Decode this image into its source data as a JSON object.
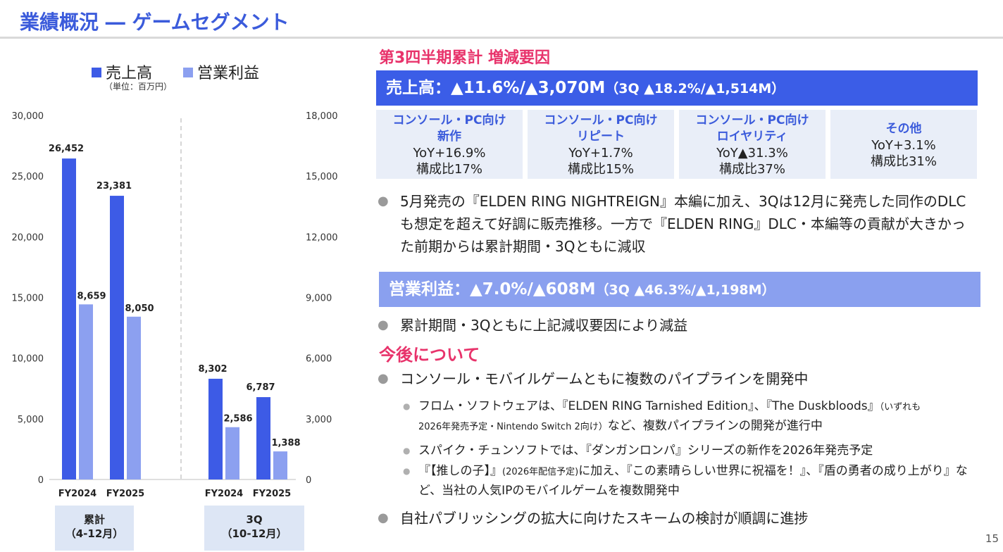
{
  "page_title": "業績概況 ― ゲームセグメント",
  "page_number": "15",
  "legend": {
    "sales": "売上高",
    "op": "営業利益",
    "unit_note": "（単位：百万円）"
  },
  "colors": {
    "sales": "#3d5be6",
    "op": "#8ca0f0",
    "accent": "#e8336b"
  },
  "chart_data": {
    "type": "bar",
    "left_axis": {
      "ylim": [
        0,
        30000
      ],
      "ticks": [
        "0",
        "5,000",
        "10,000",
        "15,000",
        "20,000",
        "25,000",
        "30,000"
      ]
    },
    "right_axis": {
      "ylim": [
        0,
        18000
      ],
      "ticks": [
        "0",
        "3,000",
        "6,000",
        "9,000",
        "12,000",
        "15,000",
        "18,000"
      ]
    },
    "categories": [
      "FY2024",
      "FY2025",
      "FY2024",
      "FY2025"
    ],
    "series": [
      {
        "name": "売上高",
        "axis": "left",
        "values": [
          26452,
          23381,
          8302,
          6787
        ],
        "labels": [
          "26,452",
          "23,381",
          "8,302",
          "6,787"
        ]
      },
      {
        "name": "営業利益",
        "axis": "right",
        "values": [
          8659,
          8050,
          2586,
          1388
        ],
        "labels": [
          "8,659",
          "8,050",
          "2,586",
          "1,388"
        ]
      }
    ],
    "groups": [
      {
        "label_line1": "累計",
        "label_line2": "（4-12月）"
      },
      {
        "label_line1": "3Q",
        "label_line2": "（10-12月）"
      }
    ],
    "grid": false
  },
  "right": {
    "factor_title": "第3四半期累計 増減要因",
    "sales_head": "売上高：▲11.6%/▲3,070M",
    "sales_head_sub": "（3Q ▲18.2%/▲1,514M）",
    "cells": [
      {
        "t1": "コンソール・PC向け",
        "t2": "新作",
        "yoy": "YoY+16.9%",
        "ratio": "構成比17%"
      },
      {
        "t1": "コンソール・PC向け",
        "t2": "リピート",
        "yoy": "YoY+1.7%",
        "ratio": "構成比15%"
      },
      {
        "t1": "コンソール・PC向け",
        "t2": "ロイヤリティ",
        "yoy": "YoY▲31.3%",
        "ratio": "構成比37%"
      },
      {
        "t1": "その他",
        "t2": "",
        "yoy": "YoY+3.1%",
        "ratio": "構成比31%"
      }
    ],
    "sales_bullet": "5月発売の『ELDEN RING NIGHTREIGN』本編に加え、3Qは12月に発売した同作のDLCも想定を超えて好調に販売推移。一方で『ELDEN RING』DLC・本編等の貢献が大きかった前期からは累計期間・3Qともに減収",
    "op_head": "営業利益：▲7.0%/▲608M",
    "op_head_sub": "（3Q ▲46.3%/▲1,198M）",
    "op_bullet": "累計期間・3Qともに上記減収要因により減益",
    "future_title": "今後について",
    "future_bullet1": "コンソール・モバイルゲームともに複数のパイプラインを開発中",
    "sub1_main": "フロム・ソフトウェアは、『ELDEN RING Tarnished Edition』、『The Duskbloods』",
    "sub1_small": "（いずれも",
    "sub1_small2": "2026年発売予定・Nintendo Switch 2向け）",
    "sub1_tail": "など、複数パイプラインの開発が進行中",
    "sub2": "スパイク・チュンソフトでは、『ダンガンロンパ』シリーズの新作を2026年発売予定",
    "sub3_a": "『【推しの子】』",
    "sub3_small": "(2026年配信予定)",
    "sub3_b": "に加え、『この素晴らしい世界に祝福を！』、『盾の勇者の成り上がり』など、当社の人気IPのモバイルゲームを複数開発中",
    "future_bullet2": "自社パブリッシングの拡大に向けたスキームの検討が順調に進捗"
  }
}
